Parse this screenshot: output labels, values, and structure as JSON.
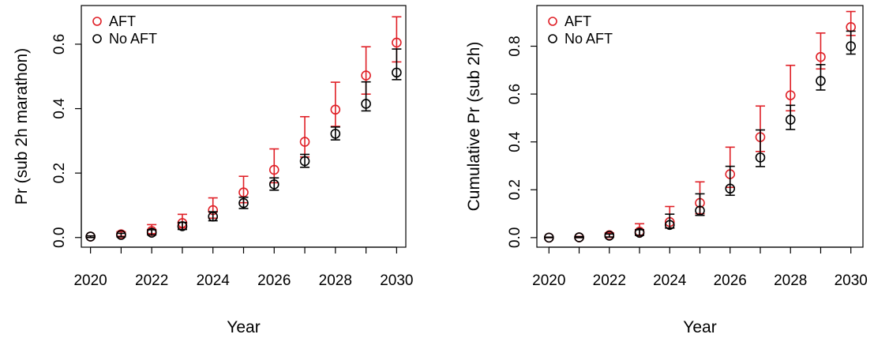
{
  "colors": {
    "aft": "#DF1F26",
    "no_aft": "#000000"
  },
  "chart_data": [
    {
      "type": "scatter",
      "title": "",
      "xlabel": "Year",
      "ylabel": "Pr (sub 2h marathon)",
      "xlim": [
        2019.7,
        2030.3
      ],
      "ylim": [
        -0.03,
        0.72
      ],
      "x": [
        2020,
        2021,
        2022,
        2023,
        2024,
        2025,
        2026,
        2027,
        2028,
        2029,
        2030
      ],
      "x_ticks": [
        2020,
        2022,
        2024,
        2026,
        2028,
        2030
      ],
      "y_ticks": [
        0.0,
        0.2,
        0.4,
        0.6
      ],
      "y_tick_labels": [
        "0.0",
        "0.2",
        "0.4",
        "0.6"
      ],
      "grid": false,
      "legend_position": "top-left",
      "series": [
        {
          "name": "AFT",
          "color": "#DF1F26",
          "values": [
            0.003,
            0.01,
            0.02,
            0.045,
            0.085,
            0.14,
            0.21,
            0.297,
            0.397,
            0.503,
            0.605
          ],
          "lower": [
            0.0,
            0.004,
            0.012,
            0.03,
            0.06,
            0.108,
            0.17,
            0.25,
            0.345,
            0.445,
            0.545
          ],
          "upper": [
            0.005,
            0.018,
            0.04,
            0.072,
            0.123,
            0.19,
            0.275,
            0.375,
            0.482,
            0.592,
            0.685
          ]
        },
        {
          "name": "No AFT",
          "color": "#000000",
          "values": [
            0.003,
            0.008,
            0.015,
            0.035,
            0.065,
            0.107,
            0.165,
            0.237,
            0.322,
            0.415,
            0.512
          ],
          "lower": [
            0.0,
            0.002,
            0.008,
            0.025,
            0.052,
            0.09,
            0.147,
            0.218,
            0.303,
            0.393,
            0.49
          ],
          "upper": [
            0.005,
            0.013,
            0.024,
            0.047,
            0.08,
            0.125,
            0.185,
            0.258,
            0.343,
            0.483,
            0.585
          ]
        }
      ]
    },
    {
      "type": "scatter",
      "title": "",
      "xlabel": "Year",
      "ylabel": "Cumulative Pr (sub 2h)",
      "xlim": [
        2019.6,
        2030.4
      ],
      "ylim": [
        -0.04,
        0.97
      ],
      "x": [
        2020,
        2021,
        2022,
        2023,
        2024,
        2025,
        2026,
        2027,
        2028,
        2029,
        2030
      ],
      "x_ticks": [
        2020,
        2022,
        2024,
        2026,
        2028,
        2030
      ],
      "y_ticks": [
        0.0,
        0.2,
        0.4,
        0.6,
        0.8
      ],
      "y_tick_labels": [
        "0.0",
        "0.2",
        "0.4",
        "0.6",
        "0.8"
      ],
      "grid": false,
      "legend_position": "top-left",
      "series": [
        {
          "name": "AFT",
          "color": "#DF1F26",
          "values": [
            0.0,
            0.001,
            0.01,
            0.025,
            0.065,
            0.145,
            0.265,
            0.42,
            0.595,
            0.755,
            0.88
          ],
          "lower": [
            0.0,
            0.0,
            0.003,
            0.01,
            0.04,
            0.1,
            0.21,
            0.36,
            0.53,
            0.705,
            0.845
          ],
          "upper": [
            0.002,
            0.005,
            0.02,
            0.058,
            0.13,
            0.233,
            0.378,
            0.55,
            0.72,
            0.855,
            0.945
          ]
        },
        {
          "name": "No AFT",
          "color": "#000000",
          "values": [
            0.0,
            0.001,
            0.008,
            0.02,
            0.053,
            0.113,
            0.205,
            0.335,
            0.493,
            0.655,
            0.8
          ],
          "lower": [
            0.0,
            0.0,
            0.002,
            0.01,
            0.04,
            0.093,
            0.177,
            0.297,
            0.452,
            0.617,
            0.767
          ],
          "upper": [
            0.002,
            0.004,
            0.015,
            0.033,
            0.098,
            0.183,
            0.298,
            0.45,
            0.553,
            0.723,
            0.863
          ]
        }
      ]
    }
  ]
}
